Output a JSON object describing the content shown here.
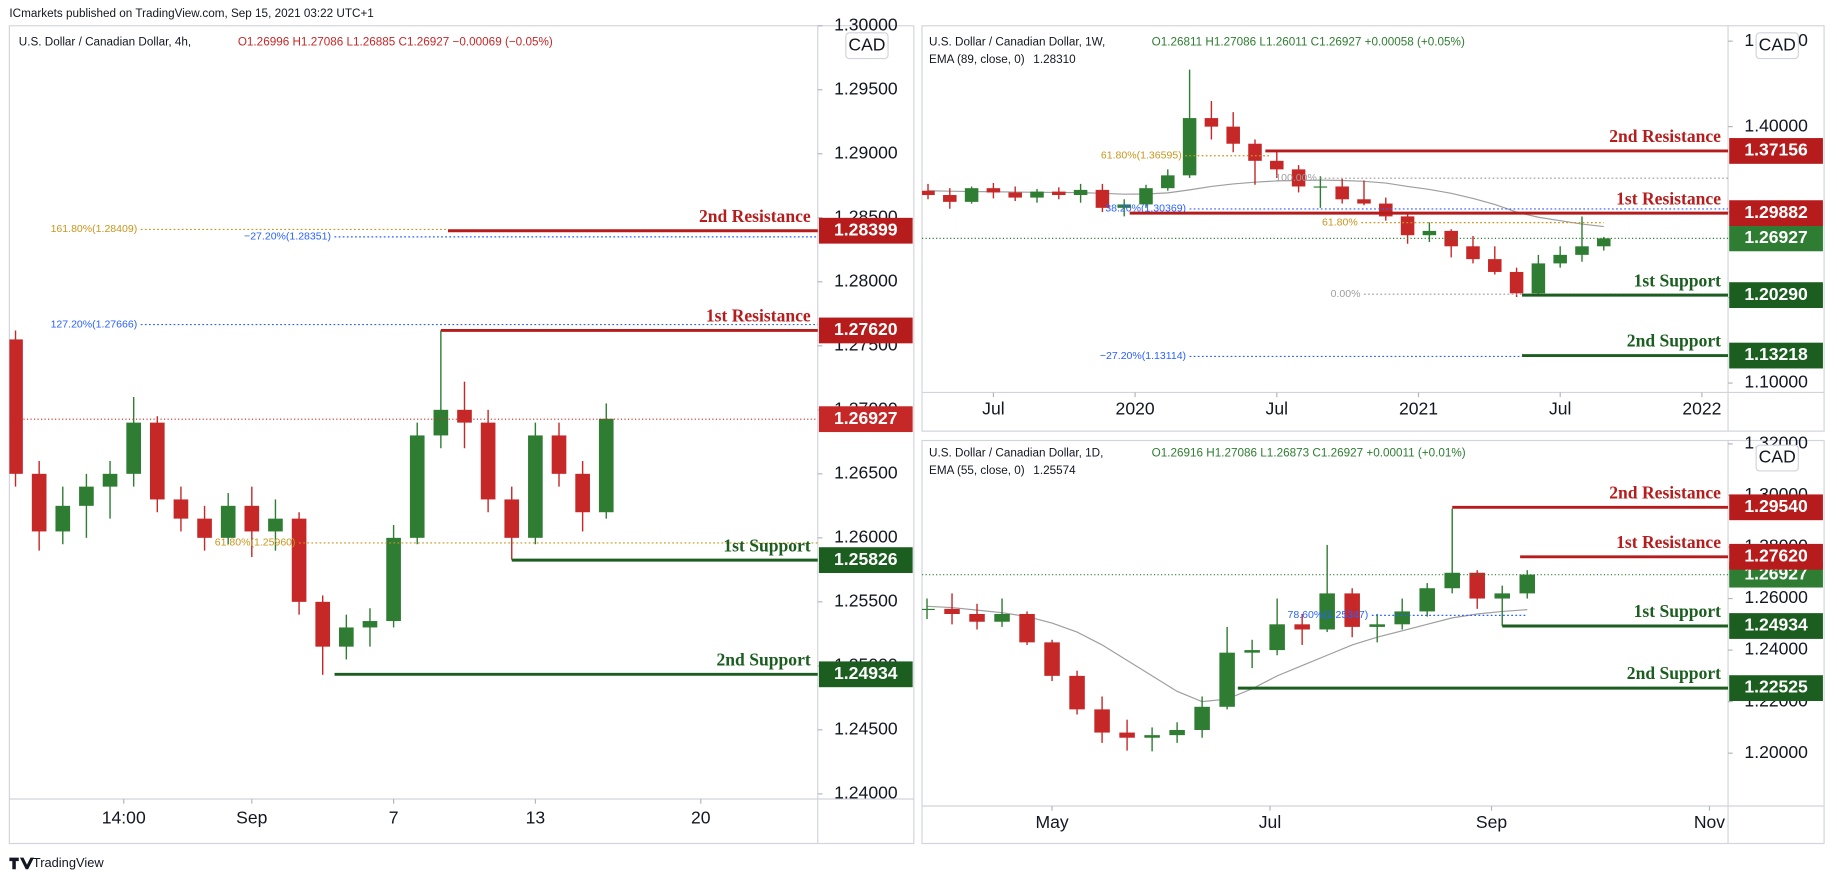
{
  "header": {
    "publisher": "ICmarkets published on TradingView.com, Sep 15, 2021 03:22 UTC+1",
    "footer": "TradingView"
  },
  "chart_data": [
    {
      "type": "candlestick",
      "title": "U.S. Dollar / Canadian Dollar, 4h,",
      "ohlc_text": "O1.26996 H1.27086 L1.26885 C1.26927 −0.00069 (−0.05%)",
      "currency": "CAD",
      "up_color": "#2e7d32",
      "down_color": "#c62828",
      "x": [
        -10,
        -9,
        -8,
        -7,
        -6,
        -5,
        -4,
        -3,
        -2,
        -1,
        0,
        1,
        2,
        3,
        4,
        5,
        6,
        7,
        8,
        9,
        10,
        11,
        12,
        13,
        14,
        15
      ],
      "open": [
        1.2755,
        1.265,
        1.2605,
        1.2625,
        1.264,
        1.265,
        1.269,
        1.263,
        1.2615,
        1.26,
        1.2625,
        1.2605,
        1.2615,
        1.255,
        1.2515,
        1.253,
        1.2535,
        1.26,
        1.268,
        1.27,
        1.269,
        1.263,
        1.26,
        1.268,
        1.265,
        1.262
      ],
      "high": [
        1.2762,
        1.266,
        1.264,
        1.265,
        1.266,
        1.271,
        1.2695,
        1.264,
        1.2625,
        1.2635,
        1.264,
        1.263,
        1.262,
        1.2555,
        1.254,
        1.2545,
        1.261,
        1.269,
        1.2762,
        1.2722,
        1.27,
        1.264,
        1.269,
        1.269,
        1.266,
        1.2705
      ],
      "low": [
        1.264,
        1.259,
        1.2595,
        1.26,
        1.2615,
        1.264,
        1.262,
        1.2605,
        1.259,
        1.2595,
        1.2585,
        1.259,
        1.254,
        1.2493,
        1.2505,
        1.2515,
        1.253,
        1.2595,
        1.267,
        1.267,
        1.262,
        1.2583,
        1.2595,
        1.264,
        1.2605,
        1.2615
      ],
      "close": [
        1.265,
        1.2605,
        1.2625,
        1.264,
        1.265,
        1.269,
        1.263,
        1.2615,
        1.26,
        1.2625,
        1.2605,
        1.2615,
        1.255,
        1.2515,
        1.253,
        1.2535,
        1.26,
        1.268,
        1.27,
        1.269,
        1.263,
        1.26,
        1.268,
        1.265,
        1.262,
        1.2693
      ],
      "xlim": [
        -10.26,
        23.95
      ],
      "xticks": [
        {
          "value": -5.42,
          "label": "14:00"
        },
        {
          "value": 0,
          "label": "Sep"
        },
        {
          "value": 6,
          "label": "7"
        },
        {
          "value": 12,
          "label": "13"
        },
        {
          "value": 19,
          "label": "20"
        }
      ],
      "ylim": [
        1.2396,
        1.3
      ],
      "yticks": [
        {
          "value": 1.24,
          "label": "1.24000"
        },
        {
          "value": 1.245,
          "label": "1.24500"
        },
        {
          "value": 1.25,
          "label": "1.25000"
        },
        {
          "value": 1.255,
          "label": "1.25500"
        },
        {
          "value": 1.26,
          "label": "1.26000"
        },
        {
          "value": 1.265,
          "label": "1.26500"
        },
        {
          "value": 1.27,
          "label": "1.27000"
        },
        {
          "value": 1.275,
          "label": "1.27500"
        },
        {
          "value": 1.28,
          "label": "1.28000"
        },
        {
          "value": 1.285,
          "label": "1.28500"
        },
        {
          "value": 1.29,
          "label": "1.29000"
        },
        {
          "value": 1.295,
          "label": "1.29500"
        },
        {
          "value": 1.3,
          "label": "1.30000"
        }
      ],
      "levels": [
        {
          "name": "2nd Resistance",
          "value": 1.28399,
          "label": "1.28399",
          "from": 8.3,
          "color": "#b71c1c"
        },
        {
          "name": "1st Resistance",
          "value": 1.2762,
          "label": "1.27620",
          "from": 8,
          "color": "#b71c1c"
        },
        {
          "name": "1st Support",
          "value": 1.25826,
          "label": "1.25826",
          "from": 11,
          "color": "#1b5e20"
        },
        {
          "name": "2nd Support",
          "value": 1.24934,
          "label": "1.24934",
          "from": 3.5,
          "color": "#1b5e20"
        }
      ],
      "last": {
        "value": 1.26927,
        "label": "1.26927",
        "color": "#c62828"
      },
      "fibs": [
        {
          "label": "161.80%(1.28409)",
          "value": 1.28409,
          "from": -4.7,
          "to": 8.3,
          "color": "#c8961e"
        },
        {
          "label": "−27.20%(1.28351)",
          "value": 1.28351,
          "from": 3.5,
          "to": 23.95,
          "color": "#2962ff"
        },
        {
          "label": "127.20%(1.27666)",
          "value": 1.27666,
          "from": -4.7,
          "to": 23.95,
          "color": "#2962ff"
        },
        {
          "label": "61.80%(1.25960)",
          "value": 1.2596,
          "from": 2,
          "to": 23.95,
          "color": "#c8961e"
        }
      ]
    },
    {
      "type": "candlestick",
      "title": "U.S. Dollar / Canadian Dollar, 1W,",
      "ohlc_text": "O1.26811 H1.27086 L1.26011 C1.26927 +0.00058 (+0.05%)",
      "ema_name": "EMA (89, close, 0)",
      "ema_text": "1.28310",
      "currency": "CAD",
      "up_color": "#2e7d32",
      "down_color": "#c62828",
      "ema_color": "#9e9e9e",
      "x": [
        -38,
        -34,
        -30,
        -26,
        -22,
        -18,
        -14,
        -10,
        -6,
        -2,
        2,
        6,
        10,
        14,
        18,
        22,
        26,
        30,
        34,
        38,
        42,
        46,
        50,
        54,
        58,
        62,
        66,
        70,
        74,
        78,
        82,
        86
      ],
      "open": [
        1.325,
        1.32,
        1.312,
        1.328,
        1.323,
        1.317,
        1.324,
        1.32,
        1.326,
        1.305,
        1.309,
        1.328,
        1.343,
        1.41,
        1.4,
        1.38,
        1.36,
        1.35,
        1.33,
        1.33,
        1.315,
        1.31,
        1.295,
        1.273,
        1.278,
        1.26,
        1.245,
        1.23,
        1.205,
        1.24,
        1.25,
        1.26
      ],
      "high": [
        1.333,
        1.328,
        1.33,
        1.334,
        1.33,
        1.327,
        1.329,
        1.333,
        1.333,
        1.315,
        1.332,
        1.35,
        1.4667,
        1.43,
        1.417,
        1.385,
        1.372,
        1.355,
        1.342,
        1.339,
        1.337,
        1.317,
        1.3,
        1.288,
        1.28,
        1.272,
        1.26,
        1.235,
        1.25,
        1.26,
        1.2949,
        1.271
      ],
      "low": [
        1.315,
        1.304,
        1.31,
        1.316,
        1.313,
        1.311,
        1.315,
        1.311,
        1.3,
        1.295,
        1.305,
        1.325,
        1.34,
        1.385,
        1.37,
        1.332,
        1.34,
        1.323,
        1.305,
        1.31,
        1.308,
        1.29,
        1.263,
        1.265,
        1.247,
        1.24,
        1.227,
        1.2007,
        1.204,
        1.235,
        1.242,
        1.255
      ],
      "close": [
        1.32,
        1.312,
        1.328,
        1.323,
        1.317,
        1.324,
        1.32,
        1.326,
        1.305,
        1.309,
        1.328,
        1.343,
        1.41,
        1.4,
        1.38,
        1.36,
        1.35,
        1.33,
        1.33,
        1.315,
        1.31,
        1.295,
        1.273,
        1.278,
        1.26,
        1.245,
        1.23,
        1.205,
        1.24,
        1.25,
        1.26,
        1.2693
      ],
      "ema": [
        1.325,
        1.3245,
        1.324,
        1.3238,
        1.3235,
        1.3232,
        1.323,
        1.3228,
        1.322,
        1.321,
        1.3212,
        1.3225,
        1.326,
        1.33,
        1.333,
        1.335,
        1.3365,
        1.337,
        1.3375,
        1.337,
        1.336,
        1.334,
        1.33,
        1.3265,
        1.322,
        1.316,
        1.309,
        1.3,
        1.294,
        1.29,
        1.286,
        1.2831
      ],
      "xlim": [
        -39.1,
        108.8
      ],
      "xticks": [
        {
          "value": -26,
          "label": "Jul"
        },
        {
          "value": 0,
          "label": "2020"
        },
        {
          "value": 26,
          "label": "Jul"
        },
        {
          "value": 52,
          "label": "2021"
        },
        {
          "value": 78,
          "label": "Jul"
        },
        {
          "value": 104,
          "label": "2022"
        }
      ],
      "ylim": [
        1.089,
        1.518
      ],
      "yticks": [
        {
          "value": 1.1,
          "label": "1.10000"
        },
        {
          "value": 1.2,
          "label": "1.20000"
        },
        {
          "value": 1.3,
          "label": "1.30000"
        },
        {
          "value": 1.4,
          "label": "1.40000"
        },
        {
          "value": 1.5,
          "label": "1.50000"
        }
      ],
      "levels": [
        {
          "name": "2nd Resistance",
          "value": 1.37156,
          "label": "1.37156",
          "from": 23.9,
          "color": "#b71c1c"
        },
        {
          "name": "1st Resistance",
          "value": 1.29882,
          "label": "1.29882",
          "from": -1,
          "color": "#b71c1c"
        },
        {
          "name": "1st Support",
          "value": 1.2029,
          "label": "1.20290",
          "from": 71,
          "color": "#1b5e20"
        },
        {
          "name": "2nd Support",
          "value": 1.13218,
          "label": "1.13218",
          "from": 71,
          "color": "#1b5e20"
        }
      ],
      "last": {
        "value": 1.26927,
        "label": "1.26927",
        "color": "#2e7d32"
      },
      "fibs": [
        {
          "label": "61.80%(1.36595)",
          "value": 1.36595,
          "from": 9.2,
          "to": 25,
          "color": "#c8961e"
        },
        {
          "label": "38.20%(1.30369)",
          "value": 1.30369,
          "from": 10,
          "to": 108.8,
          "color": "#2962ff"
        },
        {
          "label": "100.00%",
          "value": 1.3397,
          "from": 34,
          "to": 108.8,
          "color": "#9e9e9e"
        },
        {
          "label": "61.80%",
          "value": 1.2877,
          "from": 41.5,
          "to": 86,
          "color": "#c8961e"
        },
        {
          "label": "0.00%",
          "value": 1.204,
          "from": 42,
          "to": 108.8,
          "color": "#9e9e9e"
        },
        {
          "label": "−27.20%(1.13114)",
          "value": 1.13114,
          "from": 10,
          "to": 71,
          "color": "#2962ff"
        }
      ]
    },
    {
      "type": "candlestick",
      "title": "U.S. Dollar / Canadian Dollar, 1D,",
      "ohlc_text": "O1.26916 H1.27086 L1.26873 C1.26927 +0.00011 (+0.01%)",
      "ema_name": "EMA (55, close, 0)",
      "ema_text": "1.25574",
      "currency": "CAD",
      "up_color": "#2e7d32",
      "down_color": "#c62828",
      "ema_color": "#9e9e9e",
      "x": [
        -35,
        -28,
        -21,
        -14,
        -7,
        0,
        7,
        14,
        21,
        28,
        35,
        42,
        49,
        56,
        63,
        70,
        77,
        84,
        91,
        98,
        105,
        112,
        119,
        126,
        133
      ],
      "open": [
        1.256,
        1.256,
        1.254,
        1.251,
        1.254,
        1.243,
        1.23,
        1.217,
        1.208,
        1.206,
        1.207,
        1.209,
        1.218,
        1.239,
        1.24,
        1.25,
        1.248,
        1.262,
        1.249,
        1.25,
        1.255,
        1.264,
        1.27,
        1.26,
        1.262
      ],
      "high": [
        1.26,
        1.262,
        1.258,
        1.26,
        1.255,
        1.244,
        1.232,
        1.222,
        1.213,
        1.21,
        1.212,
        1.222,
        1.249,
        1.244,
        1.26,
        1.254,
        1.2808,
        1.264,
        1.254,
        1.26,
        1.266,
        1.2949,
        1.271,
        1.265,
        1.271
      ],
      "low": [
        1.252,
        1.25,
        1.248,
        1.249,
        1.242,
        1.228,
        1.215,
        1.204,
        1.201,
        1.2007,
        1.204,
        1.206,
        1.217,
        1.233,
        1.238,
        1.242,
        1.247,
        1.245,
        1.243,
        1.248,
        1.253,
        1.262,
        1.256,
        1.2493,
        1.26
      ],
      "close": [
        1.256,
        1.254,
        1.251,
        1.254,
        1.243,
        1.23,
        1.217,
        1.208,
        1.206,
        1.207,
        1.209,
        1.218,
        1.239,
        1.24,
        1.25,
        1.248,
        1.262,
        1.249,
        1.25,
        1.255,
        1.264,
        1.27,
        1.26,
        1.262,
        1.2693
      ],
      "ema": [
        1.257,
        1.2565,
        1.2555,
        1.2545,
        1.253,
        1.2505,
        1.247,
        1.242,
        1.236,
        1.23,
        1.224,
        1.22,
        1.221,
        1.225,
        1.23,
        1.234,
        1.238,
        1.242,
        1.245,
        1.2475,
        1.25,
        1.2525,
        1.254,
        1.255,
        1.2557
      ],
      "xlim": [
        -36.4,
        189.2
      ],
      "xticks": [
        {
          "value": 0,
          "label": "May"
        },
        {
          "value": 61,
          "label": "Jul"
        },
        {
          "value": 123,
          "label": "Sep"
        },
        {
          "value": 184,
          "label": "Nov"
        }
      ],
      "ylim": [
        1.1795,
        1.3195
      ],
      "yticks": [
        {
          "value": 1.2,
          "label": "1.20000"
        },
        {
          "value": 1.22,
          "label": "1.22000"
        },
        {
          "value": 1.24,
          "label": "1.24000"
        },
        {
          "value": 1.26,
          "label": "1.26000"
        },
        {
          "value": 1.28,
          "label": "1.28000"
        },
        {
          "value": 1.3,
          "label": "1.30000"
        },
        {
          "value": 1.32,
          "label": "1.32000"
        }
      ],
      "levels": [
        {
          "name": "2nd Resistance",
          "value": 1.2954,
          "label": "1.29540",
          "from": 112,
          "color": "#b71c1c"
        },
        {
          "name": "1st Resistance",
          "value": 1.2762,
          "label": "1.27620",
          "from": 131,
          "color": "#b71c1c"
        },
        {
          "name": "1st Support",
          "value": 1.24934,
          "label": "1.24934",
          "from": 126,
          "color": "#1b5e20"
        },
        {
          "name": "2nd Support",
          "value": 1.22525,
          "label": "1.22525",
          "from": 52,
          "color": "#1b5e20"
        }
      ],
      "last": {
        "value": 1.26927,
        "label": "1.26927",
        "color": "#2e7d32"
      },
      "fibs": [
        {
          "label": "78.60%(1.25347)",
          "value": 1.25347,
          "from": 89.5,
          "to": 133,
          "color": "#2962ff"
        }
      ]
    }
  ]
}
